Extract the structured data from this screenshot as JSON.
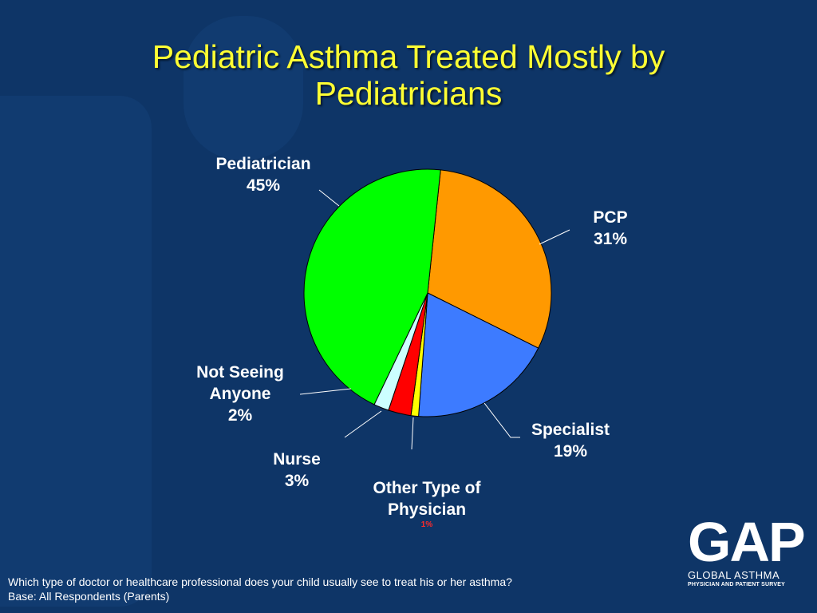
{
  "slide": {
    "title_line1": "Pediatric Asthma Treated Mostly by",
    "title_line2": "Pediatricians",
    "footer_question": "Which type of doctor or healthcare professional does your child usually see to treat his or her asthma?",
    "footer_base": "Base: All Respondents (Parents)",
    "logo_big": "GAP",
    "logo_line1": "GLOBAL ASTHMA",
    "logo_line2": "PHYSICIAN AND PATIENT SURVEY"
  },
  "labels": {
    "pediatrician": {
      "name": "Pediatrician",
      "value": "45%"
    },
    "pcp": {
      "name": "PCP",
      "value": "31%"
    },
    "specialist": {
      "name": "Specialist",
      "value": "19%"
    },
    "other": {
      "name_line1": "Other Type of",
      "name_line2": "Physician",
      "value": "1%"
    },
    "nurse": {
      "name": "Nurse",
      "value": "3%"
    },
    "not_seeing": {
      "name_line1": "Not Seeing",
      "name_line2": "Anyone",
      "value": "2%"
    }
  },
  "chart_data": {
    "type": "pie",
    "title": "Pediatric Asthma Treated Mostly by Pediatricians",
    "slices": [
      {
        "label": "PCP",
        "value": 31,
        "color": "#ff9900"
      },
      {
        "label": "Specialist",
        "value": 19,
        "color": "#3d7bff"
      },
      {
        "label": "Other Type of Physician",
        "value": 1,
        "color": "#ffff00"
      },
      {
        "label": "Nurse",
        "value": 3,
        "color": "#ff0000"
      },
      {
        "label": "Not Seeing Anyone",
        "value": 2,
        "color": "#ccffff"
      },
      {
        "label": "Pediatrician",
        "value": 45,
        "color": "#00ff00"
      }
    ]
  }
}
